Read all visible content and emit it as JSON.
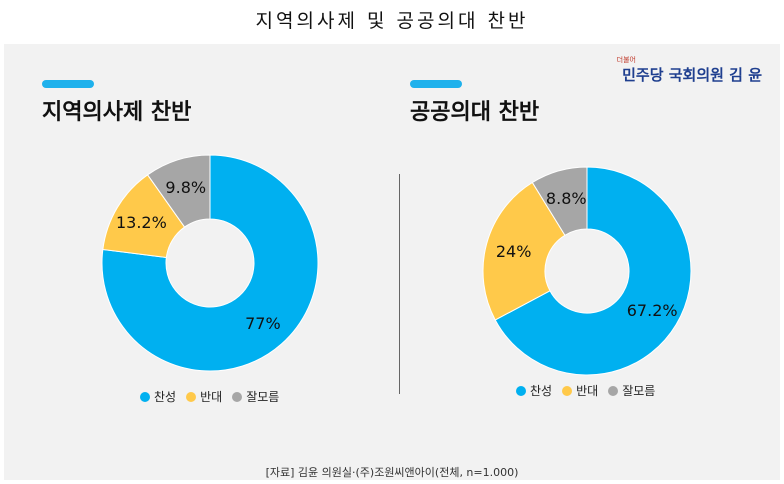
{
  "page_title": "지역의사제 및 공공의대 찬반",
  "brand": {
    "mark": "더불어",
    "name": "민주당 국회의원 김 윤"
  },
  "colors": {
    "찬성": "#00b0f0",
    "반대": "#ffc94a",
    "잘모름": "#a6a6a6",
    "accent": "#1fb1ec"
  },
  "source": "[자료] 김윤 의원실·(주)조원씨앤아이(전체, n=1.000)",
  "chart_data": [
    {
      "type": "pie",
      "title": "지역의사제 찬반",
      "labels": [
        "찬성",
        "반대",
        "잘모름"
      ],
      "values": [
        77,
        13.2,
        9.8
      ],
      "value_labels": [
        "77%",
        "13.2%",
        "9.8%"
      ],
      "legend_position": "bottom"
    },
    {
      "type": "pie",
      "title": "공공의대 찬반",
      "labels": [
        "찬성",
        "반대",
        "잘모름"
      ],
      "values": [
        67.2,
        24,
        8.8
      ],
      "value_labels": [
        "67.2%",
        "24%",
        "8.8%"
      ],
      "legend_position": "bottom"
    }
  ]
}
